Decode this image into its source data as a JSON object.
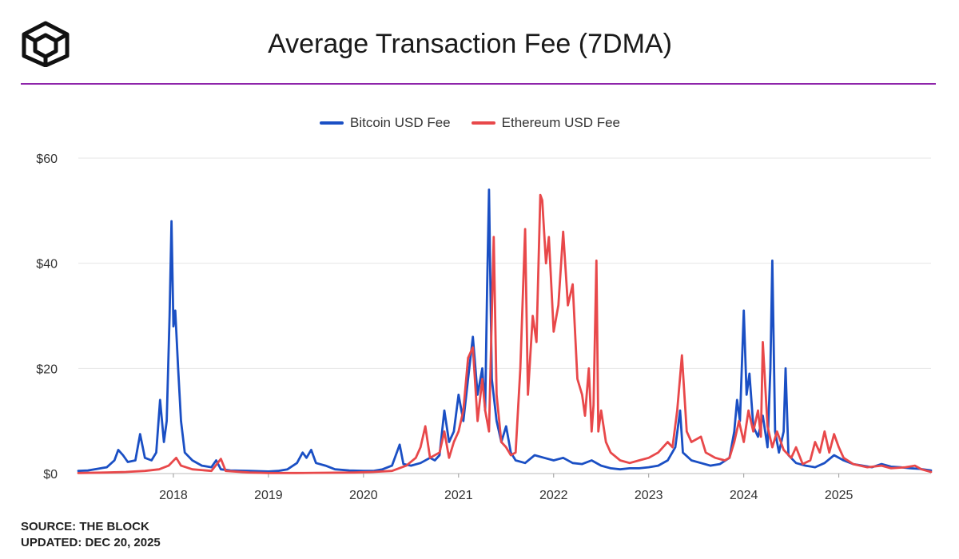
{
  "header": {
    "title": "Average Transaction Fee (7DMA)"
  },
  "colors": {
    "bitcoin": "#1a4fc4",
    "ethereum": "#e8484a",
    "divider": "#8e24aa",
    "grid": "#e6e6e6"
  },
  "footer": {
    "source": "SOURCE: THE BLOCK",
    "updated": "UPDATED: DEC 20, 2025"
  },
  "chart_data": {
    "type": "line",
    "title": "Average Transaction Fee (7DMA)",
    "xlabel": "",
    "ylabel": "",
    "xlim": [
      2017.0,
      2025.97
    ],
    "ylim": [
      0,
      60
    ],
    "y_ticks": [
      {
        "value": 0,
        "label": "$0"
      },
      {
        "value": 20,
        "label": "$20"
      },
      {
        "value": 40,
        "label": "$40"
      },
      {
        "value": 60,
        "label": "$60"
      }
    ],
    "x_ticks": [
      {
        "value": 2018,
        "label": "2018"
      },
      {
        "value": 2019,
        "label": "2019"
      },
      {
        "value": 2020,
        "label": "2020"
      },
      {
        "value": 2021,
        "label": "2021"
      },
      {
        "value": 2022,
        "label": "2022"
      },
      {
        "value": 2023,
        "label": "2023"
      },
      {
        "value": 2024,
        "label": "2024"
      },
      {
        "value": 2025,
        "label": "2025"
      }
    ],
    "legend": "top-center",
    "grid": true,
    "series": [
      {
        "name": "Bitcoin USD Fee",
        "color": "#1a4fc4",
        "points": [
          [
            2017.0,
            0.5
          ],
          [
            2017.1,
            0.6
          ],
          [
            2017.2,
            0.9
          ],
          [
            2017.3,
            1.2
          ],
          [
            2017.38,
            2.5
          ],
          [
            2017.42,
            4.5
          ],
          [
            2017.47,
            3.5
          ],
          [
            2017.52,
            2.2
          ],
          [
            2017.6,
            2.5
          ],
          [
            2017.65,
            7.5
          ],
          [
            2017.7,
            3
          ],
          [
            2017.77,
            2.5
          ],
          [
            2017.82,
            4
          ],
          [
            2017.86,
            14
          ],
          [
            2017.9,
            6
          ],
          [
            2017.93,
            10
          ],
          [
            2017.96,
            30
          ],
          [
            2017.98,
            48
          ],
          [
            2018.0,
            28
          ],
          [
            2018.02,
            31
          ],
          [
            2018.05,
            20
          ],
          [
            2018.08,
            10
          ],
          [
            2018.12,
            4
          ],
          [
            2018.2,
            2.5
          ],
          [
            2018.3,
            1.5
          ],
          [
            2018.4,
            1.2
          ],
          [
            2018.45,
            2.5
          ],
          [
            2018.5,
            0.8
          ],
          [
            2018.6,
            0.6
          ],
          [
            2018.8,
            0.5
          ],
          [
            2019.0,
            0.4
          ],
          [
            2019.1,
            0.5
          ],
          [
            2019.2,
            0.8
          ],
          [
            2019.3,
            2
          ],
          [
            2019.36,
            4
          ],
          [
            2019.4,
            3
          ],
          [
            2019.45,
            4.5
          ],
          [
            2019.5,
            2
          ],
          [
            2019.6,
            1.5
          ],
          [
            2019.7,
            0.8
          ],
          [
            2019.85,
            0.6
          ],
          [
            2020.0,
            0.5
          ],
          [
            2020.1,
            0.5
          ],
          [
            2020.2,
            0.8
          ],
          [
            2020.3,
            1.5
          ],
          [
            2020.38,
            5.5
          ],
          [
            2020.42,
            1.8
          ],
          [
            2020.5,
            1.5
          ],
          [
            2020.6,
            2
          ],
          [
            2020.7,
            3
          ],
          [
            2020.75,
            2.5
          ],
          [
            2020.8,
            3.5
          ],
          [
            2020.85,
            12
          ],
          [
            2020.9,
            6
          ],
          [
            2020.95,
            8
          ],
          [
            2021.0,
            15
          ],
          [
            2021.05,
            10
          ],
          [
            2021.1,
            18
          ],
          [
            2021.15,
            26
          ],
          [
            2021.2,
            15
          ],
          [
            2021.25,
            20
          ],
          [
            2021.28,
            12
          ],
          [
            2021.3,
            35
          ],
          [
            2021.32,
            54
          ],
          [
            2021.35,
            18
          ],
          [
            2021.4,
            10
          ],
          [
            2021.45,
            6
          ],
          [
            2021.5,
            9
          ],
          [
            2021.55,
            4
          ],
          [
            2021.6,
            2.5
          ],
          [
            2021.7,
            2
          ],
          [
            2021.8,
            3.5
          ],
          [
            2021.9,
            3
          ],
          [
            2022.0,
            2.5
          ],
          [
            2022.1,
            3
          ],
          [
            2022.2,
            2
          ],
          [
            2022.3,
            1.8
          ],
          [
            2022.4,
            2.5
          ],
          [
            2022.5,
            1.5
          ],
          [
            2022.6,
            1
          ],
          [
            2022.7,
            0.8
          ],
          [
            2022.8,
            1
          ],
          [
            2022.9,
            1
          ],
          [
            2023.0,
            1.2
          ],
          [
            2023.1,
            1.5
          ],
          [
            2023.2,
            2.5
          ],
          [
            2023.28,
            5
          ],
          [
            2023.33,
            12
          ],
          [
            2023.36,
            4
          ],
          [
            2023.45,
            2.5
          ],
          [
            2023.55,
            2
          ],
          [
            2023.65,
            1.5
          ],
          [
            2023.75,
            1.8
          ],
          [
            2023.85,
            3
          ],
          [
            2023.9,
            8
          ],
          [
            2023.93,
            14
          ],
          [
            2023.96,
            10
          ],
          [
            2024.0,
            31
          ],
          [
            2024.03,
            15
          ],
          [
            2024.06,
            19
          ],
          [
            2024.1,
            9
          ],
          [
            2024.15,
            7
          ],
          [
            2024.2,
            11
          ],
          [
            2024.25,
            5
          ],
          [
            2024.28,
            20
          ],
          [
            2024.3,
            40.5
          ],
          [
            2024.33,
            8
          ],
          [
            2024.37,
            4
          ],
          [
            2024.42,
            8
          ],
          [
            2024.44,
            20
          ],
          [
            2024.47,
            3.5
          ],
          [
            2024.55,
            2
          ],
          [
            2024.65,
            1.5
          ],
          [
            2024.75,
            1.2
          ],
          [
            2024.85,
            2
          ],
          [
            2024.95,
            3.5
          ],
          [
            2025.05,
            2.5
          ],
          [
            2025.15,
            1.8
          ],
          [
            2025.25,
            1.5
          ],
          [
            2025.35,
            1.2
          ],
          [
            2025.45,
            1.8
          ],
          [
            2025.55,
            1.3
          ],
          [
            2025.65,
            1.2
          ],
          [
            2025.75,
            1
          ],
          [
            2025.85,
            0.9
          ],
          [
            2025.97,
            0.6
          ]
        ]
      },
      {
        "name": "Ethereum USD Fee",
        "color": "#e8484a",
        "points": [
          [
            2017.0,
            0.1
          ],
          [
            2017.3,
            0.2
          ],
          [
            2017.5,
            0.3
          ],
          [
            2017.7,
            0.5
          ],
          [
            2017.85,
            0.8
          ],
          [
            2017.95,
            1.5
          ],
          [
            2018.03,
            3
          ],
          [
            2018.08,
            1.5
          ],
          [
            2018.2,
            0.8
          ],
          [
            2018.4,
            0.5
          ],
          [
            2018.5,
            2.8
          ],
          [
            2018.55,
            0.5
          ],
          [
            2018.8,
            0.2
          ],
          [
            2019.0,
            0.1
          ],
          [
            2019.3,
            0.1
          ],
          [
            2019.6,
            0.15
          ],
          [
            2019.9,
            0.2
          ],
          [
            2020.1,
            0.3
          ],
          [
            2020.3,
            0.5
          ],
          [
            2020.45,
            1.5
          ],
          [
            2020.55,
            3
          ],
          [
            2020.6,
            5
          ],
          [
            2020.65,
            9
          ],
          [
            2020.7,
            3
          ],
          [
            2020.8,
            4
          ],
          [
            2020.85,
            8
          ],
          [
            2020.9,
            3
          ],
          [
            2020.95,
            6
          ],
          [
            2021.0,
            8
          ],
          [
            2021.05,
            12
          ],
          [
            2021.1,
            22
          ],
          [
            2021.15,
            24
          ],
          [
            2021.2,
            10
          ],
          [
            2021.25,
            18
          ],
          [
            2021.28,
            12
          ],
          [
            2021.32,
            8
          ],
          [
            2021.35,
            30
          ],
          [
            2021.37,
            45
          ],
          [
            2021.4,
            15
          ],
          [
            2021.45,
            6
          ],
          [
            2021.5,
            5
          ],
          [
            2021.55,
            3.5
          ],
          [
            2021.6,
            4
          ],
          [
            2021.65,
            20
          ],
          [
            2021.7,
            46.5
          ],
          [
            2021.73,
            15
          ],
          [
            2021.78,
            30
          ],
          [
            2021.82,
            25
          ],
          [
            2021.86,
            53
          ],
          [
            2021.88,
            52
          ],
          [
            2021.92,
            40
          ],
          [
            2021.95,
            45
          ],
          [
            2022.0,
            27
          ],
          [
            2022.05,
            32
          ],
          [
            2022.1,
            46
          ],
          [
            2022.15,
            32
          ],
          [
            2022.2,
            36
          ],
          [
            2022.25,
            18
          ],
          [
            2022.3,
            15
          ],
          [
            2022.33,
            11
          ],
          [
            2022.37,
            20
          ],
          [
            2022.4,
            8
          ],
          [
            2022.42,
            13
          ],
          [
            2022.45,
            40.5
          ],
          [
            2022.47,
            8
          ],
          [
            2022.5,
            12
          ],
          [
            2022.55,
            6
          ],
          [
            2022.6,
            4
          ],
          [
            2022.7,
            2.5
          ],
          [
            2022.8,
            2
          ],
          [
            2022.9,
            2.5
          ],
          [
            2023.0,
            3
          ],
          [
            2023.1,
            4
          ],
          [
            2023.2,
            6
          ],
          [
            2023.25,
            5
          ],
          [
            2023.3,
            12
          ],
          [
            2023.35,
            22.5
          ],
          [
            2023.4,
            8
          ],
          [
            2023.45,
            6
          ],
          [
            2023.55,
            7
          ],
          [
            2023.6,
            4
          ],
          [
            2023.7,
            3
          ],
          [
            2023.8,
            2.5
          ],
          [
            2023.85,
            3
          ],
          [
            2023.9,
            6
          ],
          [
            2023.95,
            10
          ],
          [
            2024.0,
            6
          ],
          [
            2024.05,
            12
          ],
          [
            2024.1,
            8
          ],
          [
            2024.15,
            12
          ],
          [
            2024.18,
            7
          ],
          [
            2024.2,
            25
          ],
          [
            2024.25,
            9
          ],
          [
            2024.3,
            5
          ],
          [
            2024.35,
            8
          ],
          [
            2024.42,
            4.5
          ],
          [
            2024.5,
            3
          ],
          [
            2024.55,
            5
          ],
          [
            2024.62,
            1.8
          ],
          [
            2024.7,
            2.5
          ],
          [
            2024.75,
            6
          ],
          [
            2024.8,
            4
          ],
          [
            2024.85,
            8
          ],
          [
            2024.9,
            4
          ],
          [
            2024.95,
            7.5
          ],
          [
            2025.0,
            5
          ],
          [
            2025.05,
            3
          ],
          [
            2025.15,
            1.8
          ],
          [
            2025.3,
            1.2
          ],
          [
            2025.45,
            1.5
          ],
          [
            2025.55,
            1
          ],
          [
            2025.7,
            1.2
          ],
          [
            2025.8,
            1.5
          ],
          [
            2025.87,
            0.8
          ],
          [
            2025.97,
            0.3
          ]
        ]
      }
    ]
  }
}
